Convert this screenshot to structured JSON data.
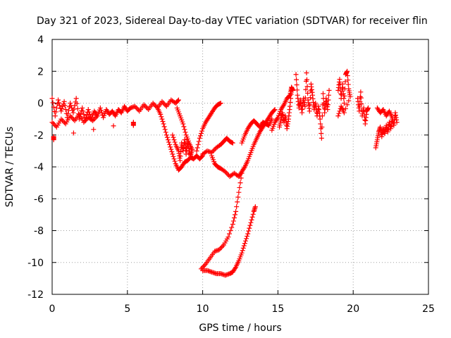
{
  "chart_data": {
    "type": "scatter",
    "title": "Day 321 of 2023, Sidereal Day-to-day VTEC variation (SDTVAR) for receiver flin",
    "xlabel": "GPS time / hours",
    "ylabel": "SDTVAR / TECUs",
    "xlim": [
      0,
      25
    ],
    "ylim": [
      -12,
      4
    ],
    "x_ticks": [
      0,
      5,
      10,
      15,
      20,
      25
    ],
    "y_ticks": [
      -12,
      -10,
      -8,
      -6,
      -4,
      -2,
      0,
      2,
      4
    ],
    "x_tick_labels": [
      "0",
      "5",
      "10",
      "15",
      "20",
      "25"
    ],
    "y_tick_labels": [
      "-12",
      "-10",
      "-8",
      "-6",
      "-4",
      "-2",
      "0",
      "2",
      "4"
    ],
    "grid": true,
    "marker": "+",
    "color": "#ff0000",
    "series": [
      {
        "name": "SDTVAR",
        "segments": [
          [
            [
              0.0,
              0.3
            ],
            [
              0.2,
              -0.8
            ],
            [
              0.4,
              0.2
            ],
            [
              0.6,
              -0.5
            ],
            [
              0.8,
              0.1
            ],
            [
              1.0,
              -0.9
            ],
            [
              1.2,
              0.0
            ],
            [
              1.4,
              -0.6
            ],
            [
              1.6,
              0.3
            ],
            [
              1.8,
              -1.0
            ],
            [
              2.0,
              -0.3
            ],
            [
              2.2,
              -1.1
            ],
            [
              2.4,
              -0.4
            ],
            [
              2.6,
              -1.0
            ],
            [
              2.8,
              -0.5
            ],
            [
              3.0,
              -0.8
            ],
            [
              3.2,
              -0.3
            ],
            [
              3.4,
              -0.9
            ],
            [
              3.6,
              -0.4
            ],
            [
              3.8,
              -0.7
            ],
            [
              4.0,
              -0.5
            ],
            [
              4.2,
              -0.8
            ],
            [
              4.4,
              -0.4
            ],
            [
              4.6,
              -0.6
            ],
            [
              4.8,
              -0.2
            ],
            [
              5.0,
              -0.5
            ],
            [
              5.2,
              -0.3
            ],
            [
              5.5,
              -0.2
            ],
            [
              5.8,
              -0.5
            ],
            [
              6.1,
              -0.1
            ],
            [
              6.4,
              -0.4
            ],
            [
              6.7,
              0.0
            ],
            [
              7.0,
              -0.3
            ],
            [
              7.3,
              0.1
            ],
            [
              7.6,
              -0.2
            ],
            [
              7.9,
              0.2
            ],
            [
              8.2,
              0.0
            ],
            [
              8.4,
              0.2
            ]
          ],
          [
            [
              0.0,
              -1.2
            ],
            [
              0.3,
              -1.5
            ],
            [
              0.6,
              -1.0
            ],
            [
              0.9,
              -1.3
            ],
            [
              1.2,
              -0.8
            ],
            [
              1.5,
              -1.1
            ],
            [
              1.8,
              -0.7
            ],
            [
              2.1,
              -1.2
            ],
            [
              2.4,
              -0.9
            ],
            [
              2.7,
              -1.1
            ],
            [
              3.0,
              -0.8
            ]
          ],
          [
            [
              0.1,
              -2.3
            ],
            [
              0.1,
              -2.1
            ],
            [
              5.4,
              -1.2
            ],
            [
              5.4,
              -1.4
            ]
          ],
          [
            [
              7.0,
              -0.3
            ],
            [
              7.2,
              -0.7
            ],
            [
              7.4,
              -1.3
            ],
            [
              7.6,
              -2.0
            ],
            [
              7.8,
              -2.6
            ],
            [
              8.0,
              -3.2
            ],
            [
              8.2,
              -3.8
            ],
            [
              8.4,
              -4.2
            ],
            [
              8.6,
              -4.0
            ],
            [
              8.8,
              -3.7
            ],
            [
              9.0,
              -3.6
            ],
            [
              9.2,
              -3.4
            ],
            [
              9.4,
              -3.5
            ],
            [
              9.6,
              -3.3
            ],
            [
              9.8,
              -3.5
            ],
            [
              10.0,
              -3.3
            ]
          ],
          [
            [
              8.0,
              -2.0
            ],
            [
              8.2,
              -2.6
            ],
            [
              8.4,
              -3.0
            ],
            [
              8.5,
              -3.6
            ],
            [
              8.6,
              -2.5
            ],
            [
              8.7,
              -3.0
            ],
            [
              8.8,
              -2.3
            ],
            [
              8.9,
              -3.2
            ],
            [
              9.0,
              -2.4
            ],
            [
              9.1,
              -3.0
            ],
            [
              9.2,
              -3.3
            ],
            [
              9.3,
              -2.9
            ]
          ],
          [
            [
              8.3,
              -0.3
            ],
            [
              8.5,
              -0.8
            ],
            [
              8.7,
              -1.3
            ],
            [
              8.9,
              -2.0
            ],
            [
              9.1,
              -2.5
            ],
            [
              9.3,
              -2.9
            ]
          ],
          [
            [
              9.6,
              -3.0
            ],
            [
              9.8,
              -2.2
            ],
            [
              10.0,
              -1.6
            ],
            [
              10.2,
              -1.2
            ],
            [
              10.4,
              -0.9
            ],
            [
              10.6,
              -0.6
            ],
            [
              10.8,
              -0.3
            ],
            [
              11.0,
              -0.1
            ],
            [
              11.2,
              0.0
            ]
          ],
          [
            [
              10.0,
              -3.2
            ],
            [
              10.3,
              -3.0
            ],
            [
              10.6,
              -3.1
            ],
            [
              10.9,
              -2.8
            ],
            [
              11.2,
              -2.6
            ],
            [
              11.4,
              -2.4
            ],
            [
              11.6,
              -2.2
            ],
            [
              11.8,
              -2.4
            ],
            [
              12.0,
              -2.5
            ]
          ],
          [
            [
              10.6,
              -3.3
            ],
            [
              10.8,
              -3.8
            ],
            [
              11.0,
              -4.0
            ],
            [
              11.2,
              -4.1
            ],
            [
              11.5,
              -4.3
            ],
            [
              11.8,
              -4.6
            ],
            [
              12.1,
              -4.4
            ],
            [
              12.4,
              -4.6
            ],
            [
              12.6,
              -4.3
            ],
            [
              12.8,
              -4.0
            ],
            [
              13.0,
              -3.6
            ],
            [
              13.2,
              -3.1
            ],
            [
              13.4,
              -2.6
            ],
            [
              13.6,
              -2.2
            ],
            [
              13.8,
              -1.8
            ],
            [
              14.0,
              -1.5
            ],
            [
              14.2,
              -1.2
            ],
            [
              14.4,
              -0.9
            ],
            [
              14.6,
              -0.6
            ],
            [
              14.8,
              -0.4
            ]
          ],
          [
            [
              12.6,
              -2.5
            ],
            [
              12.8,
              -2.0
            ],
            [
              13.0,
              -1.6
            ],
            [
              13.2,
              -1.3
            ],
            [
              13.4,
              -1.1
            ],
            [
              13.6,
              -1.3
            ],
            [
              13.8,
              -1.5
            ],
            [
              14.0,
              -1.2
            ],
            [
              14.2,
              -1.3
            ],
            [
              14.4,
              -1.4
            ],
            [
              14.6,
              -1.0
            ]
          ],
          [
            [
              12.6,
              -4.4
            ],
            [
              12.4,
              -5.6
            ],
            [
              12.2,
              -6.8
            ],
            [
              12.0,
              -7.6
            ],
            [
              11.7,
              -8.4
            ],
            [
              11.4,
              -8.9
            ],
            [
              11.1,
              -9.2
            ],
            [
              10.8,
              -9.3
            ],
            [
              10.5,
              -9.7
            ],
            [
              10.2,
              -10.1
            ],
            [
              9.9,
              -10.4
            ]
          ],
          [
            [
              10.0,
              -10.5
            ],
            [
              10.3,
              -10.5
            ],
            [
              10.6,
              -10.6
            ],
            [
              10.9,
              -10.7
            ],
            [
              11.2,
              -10.7
            ],
            [
              11.5,
              -10.8
            ],
            [
              11.8,
              -10.7
            ],
            [
              12.0,
              -10.6
            ],
            [
              12.2,
              -10.3
            ],
            [
              12.4,
              -9.9
            ],
            [
              12.6,
              -9.4
            ],
            [
              12.8,
              -8.8
            ],
            [
              13.0,
              -8.2
            ],
            [
              13.2,
              -7.5
            ],
            [
              13.4,
              -6.8
            ],
            [
              13.5,
              -6.5
            ]
          ],
          [
            [
              14.6,
              -1.7
            ],
            [
              14.8,
              -1.2
            ],
            [
              15.0,
              -0.9
            ],
            [
              15.2,
              -0.4
            ],
            [
              15.4,
              -0.1
            ],
            [
              15.6,
              0.3
            ],
            [
              15.8,
              0.5
            ],
            [
              15.9,
              1.0
            ],
            [
              16.0,
              0.8
            ]
          ],
          [
            [
              15.1,
              -1.5
            ],
            [
              15.2,
              -1.0
            ],
            [
              15.3,
              -0.6
            ],
            [
              15.4,
              -1.2
            ],
            [
              15.5,
              -0.8
            ],
            [
              15.6,
              -1.6
            ],
            [
              15.7,
              -1.0
            ],
            [
              15.8,
              -0.2
            ],
            [
              15.9,
              0.8
            ]
          ],
          [
            [
              16.2,
              1.8
            ],
            [
              16.3,
              0.5
            ],
            [
              16.4,
              -0.3
            ],
            [
              16.5,
              0.2
            ],
            [
              16.6,
              -0.6
            ],
            [
              16.7,
              0.3
            ],
            [
              16.8,
              -0.2
            ],
            [
              16.9,
              1.9
            ],
            [
              17.0,
              0.2
            ],
            [
              17.1,
              -0.5
            ],
            [
              17.2,
              1.2
            ],
            [
              17.3,
              0.5
            ],
            [
              17.4,
              -0.4
            ],
            [
              17.5,
              0.0
            ],
            [
              17.6,
              -0.8
            ],
            [
              17.7,
              -0.2
            ],
            [
              17.8,
              -1.0
            ],
            [
              17.9,
              -2.2
            ],
            [
              18.0,
              0.6
            ],
            [
              18.1,
              -0.6
            ],
            [
              18.2,
              0.3
            ],
            [
              18.3,
              -0.4
            ],
            [
              18.4,
              0.8
            ]
          ],
          [
            [
              19.0,
              0.8
            ],
            [
              19.1,
              1.5
            ],
            [
              19.2,
              0.3
            ],
            [
              19.3,
              1.2
            ],
            [
              19.4,
              0.0
            ],
            [
              19.5,
              1.8
            ],
            [
              19.6,
              2.0
            ],
            [
              19.7,
              0.9
            ],
            [
              19.8,
              0.4
            ],
            [
              19.4,
              -0.6
            ],
            [
              19.2,
              -0.2
            ],
            [
              19.0,
              -0.8
            ]
          ],
          [
            [
              20.3,
              0.3
            ],
            [
              20.4,
              -0.5
            ],
            [
              20.5,
              0.7
            ],
            [
              20.6,
              -0.8
            ],
            [
              20.7,
              -0.3
            ],
            [
              20.8,
              -1.3
            ],
            [
              20.9,
              -0.5
            ],
            [
              21.0,
              -0.3
            ]
          ],
          [
            [
              21.5,
              -2.8
            ],
            [
              21.6,
              -2.3
            ],
            [
              21.7,
              -1.8
            ],
            [
              21.8,
              -1.5
            ],
            [
              21.9,
              -2.1
            ],
            [
              22.0,
              -1.6
            ],
            [
              22.1,
              -1.9
            ],
            [
              22.2,
              -1.4
            ],
            [
              22.3,
              -1.8
            ],
            [
              22.4,
              -1.2
            ],
            [
              22.5,
              -1.6
            ],
            [
              22.6,
              -1.0
            ],
            [
              22.7,
              -1.4
            ],
            [
              22.8,
              -0.6
            ],
            [
              22.9,
              -1.2
            ]
          ],
          [
            [
              21.6,
              -0.3
            ],
            [
              21.8,
              -0.6
            ],
            [
              22.0,
              -0.4
            ],
            [
              22.2,
              -0.8
            ],
            [
              22.4,
              -0.5
            ],
            [
              22.6,
              -0.9
            ]
          ]
        ]
      }
    ]
  }
}
